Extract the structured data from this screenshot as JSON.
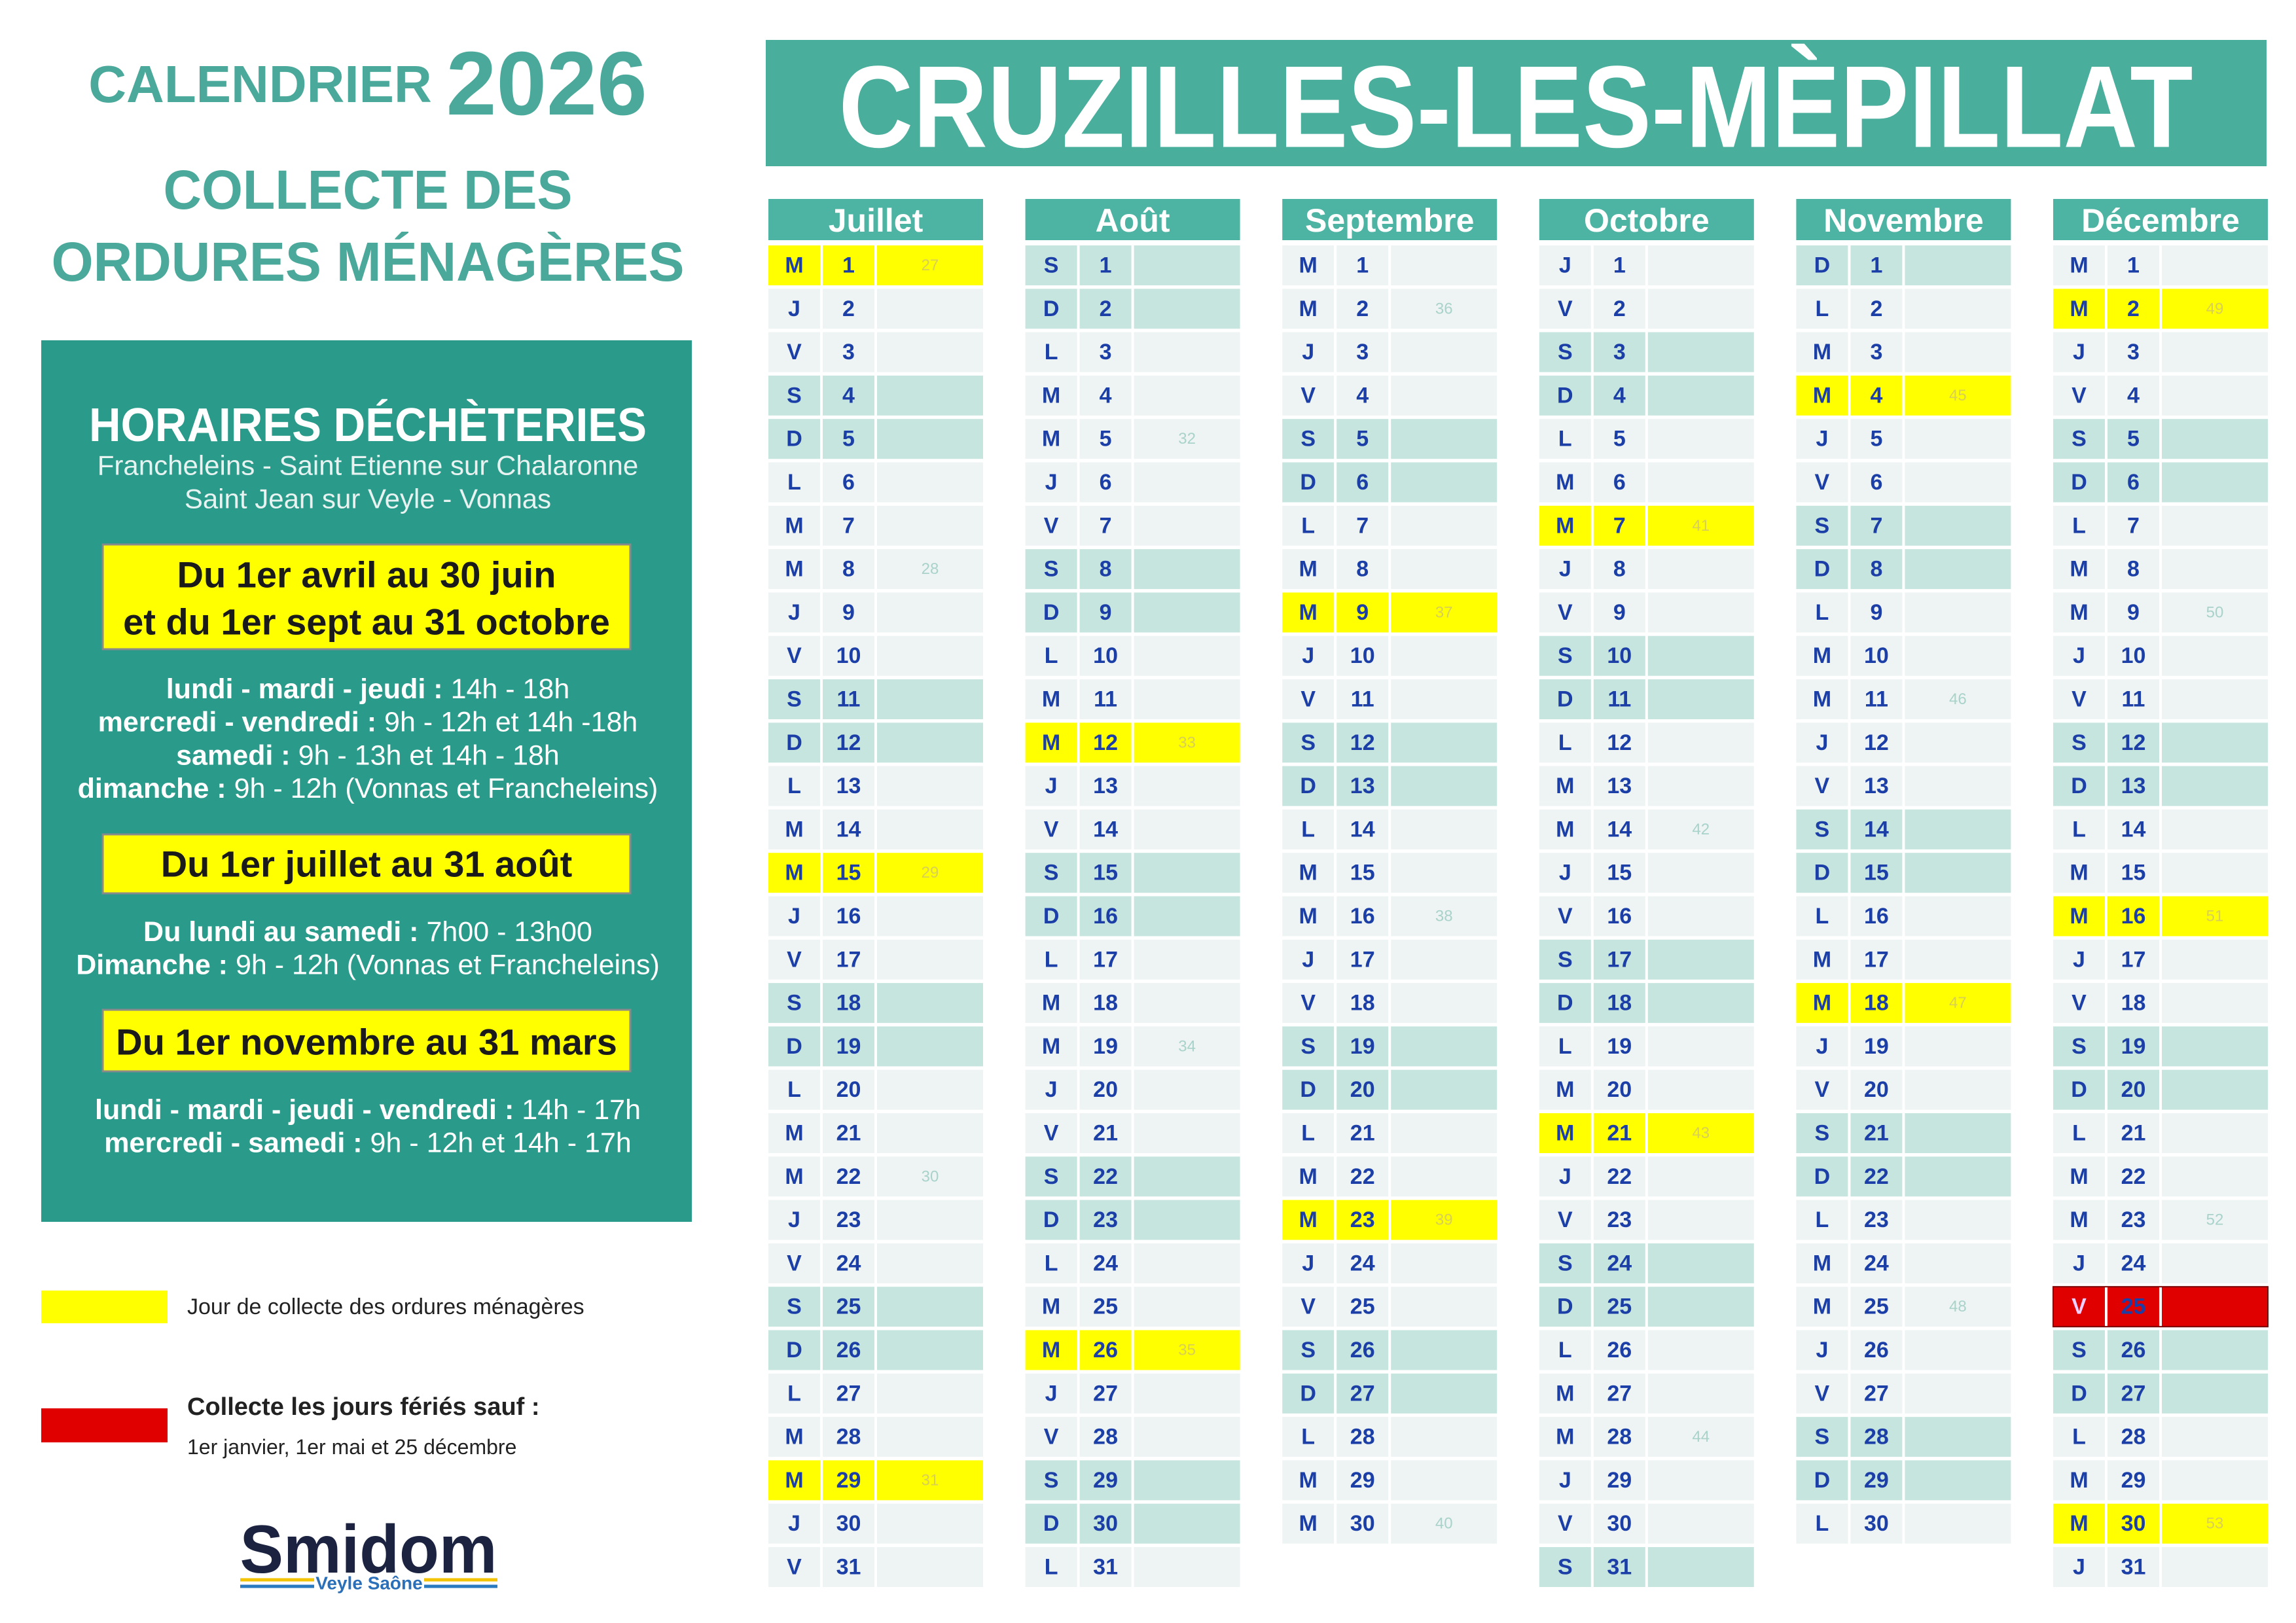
{
  "header": {
    "title_prefix": "CALENDRIER",
    "title_year": "2026",
    "subtitle": [
      "COLLECTE DES",
      "ORDURES MÉNAGÈRES"
    ],
    "commune": "CRUZILLES-LES-MÈPILLAT"
  },
  "dechetteries": {
    "title": "HORAIRES DÉCHÈTERIES",
    "locations": [
      "Francheleins - Saint Etienne sur Chalaronne",
      "Saint Jean sur Veyle - Vonnas"
    ],
    "periods": [
      {
        "label": [
          "Du 1er avril au 30 juin",
          "et du 1er sept au 31 octobre"
        ],
        "hours": [
          [
            "lundi - mardi - jeudi :",
            "14h - 18h"
          ],
          [
            "mercredi - vendredi :",
            "9h - 12h et 14h -18h"
          ],
          [
            "samedi :",
            "9h - 13h et 14h - 18h"
          ],
          [
            "dimanche :",
            "9h - 12h (Vonnas et Francheleins)"
          ]
        ]
      },
      {
        "label": [
          "Du 1er juillet au 31 août"
        ],
        "hours": [
          [
            "Du lundi au samedi :",
            "7h00 - 13h00"
          ],
          [
            "Dimanche :",
            "9h - 12h (Vonnas et Francheleins)"
          ]
        ]
      },
      {
        "label": [
          "Du 1er novembre au 31 mars"
        ],
        "hours": [
          [
            "lundi - mardi - jeudi - vendredi :",
            "14h - 17h"
          ],
          [
            "mercredi - samedi :",
            "9h - 12h et 14h - 17h"
          ]
        ]
      }
    ]
  },
  "legend": [
    {
      "label": "Jour de collecte des ordures ménagères",
      "color": "#ffff00"
    },
    {
      "label": "Collecte les jours fériés sauf :",
      "note": "1er janvier, 1er mai et 25 décembre",
      "color": "#e00000"
    }
  ],
  "logo": {
    "name": "Smidom",
    "tagline": "Veyle Saône"
  },
  "calendar": {
    "months": [
      {
        "name": "Juillet",
        "collection_days": [
          1,
          15,
          29
        ],
        "days": [
          [
            "M",
            1,
            27
          ],
          [
            "J",
            2,
            null
          ],
          [
            "V",
            3,
            null
          ],
          [
            "S",
            4,
            null
          ],
          [
            "D",
            5,
            null
          ],
          [
            "L",
            6,
            null
          ],
          [
            "M",
            7,
            null
          ],
          [
            "M",
            8,
            28
          ],
          [
            "J",
            9,
            null
          ],
          [
            "V",
            10,
            null
          ],
          [
            "S",
            11,
            null
          ],
          [
            "D",
            12,
            null
          ],
          [
            "L",
            13,
            null
          ],
          [
            "M",
            14,
            null
          ],
          [
            "M",
            15,
            29
          ],
          [
            "J",
            16,
            null
          ],
          [
            "V",
            17,
            null
          ],
          [
            "S",
            18,
            null
          ],
          [
            "D",
            19,
            null
          ],
          [
            "L",
            20,
            null
          ],
          [
            "M",
            21,
            null
          ],
          [
            "M",
            22,
            30
          ],
          [
            "J",
            23,
            null
          ],
          [
            "V",
            24,
            null
          ],
          [
            "S",
            25,
            null
          ],
          [
            "D",
            26,
            null
          ],
          [
            "L",
            27,
            null
          ],
          [
            "M",
            28,
            null
          ],
          [
            "M",
            29,
            31
          ],
          [
            "J",
            30,
            null
          ],
          [
            "V",
            31,
            null
          ]
        ]
      },
      {
        "name": "Août",
        "collection_days": [
          12,
          26
        ],
        "days": [
          [
            "S",
            1,
            null
          ],
          [
            "D",
            2,
            null
          ],
          [
            "L",
            3,
            null
          ],
          [
            "M",
            4,
            null
          ],
          [
            "M",
            5,
            32
          ],
          [
            "J",
            6,
            null
          ],
          [
            "V",
            7,
            null
          ],
          [
            "S",
            8,
            null
          ],
          [
            "D",
            9,
            null
          ],
          [
            "L",
            10,
            null
          ],
          [
            "M",
            11,
            null
          ],
          [
            "M",
            12,
            33
          ],
          [
            "J",
            13,
            null
          ],
          [
            "V",
            14,
            null
          ],
          [
            "S",
            15,
            null
          ],
          [
            "D",
            16,
            null
          ],
          [
            "L",
            17,
            null
          ],
          [
            "M",
            18,
            null
          ],
          [
            "M",
            19,
            34
          ],
          [
            "J",
            20,
            null
          ],
          [
            "V",
            21,
            null
          ],
          [
            "S",
            22,
            null
          ],
          [
            "D",
            23,
            null
          ],
          [
            "L",
            24,
            null
          ],
          [
            "M",
            25,
            null
          ],
          [
            "M",
            26,
            35
          ],
          [
            "J",
            27,
            null
          ],
          [
            "V",
            28,
            null
          ],
          [
            "S",
            29,
            null
          ],
          [
            "D",
            30,
            null
          ],
          [
            "L",
            31,
            null
          ]
        ]
      },
      {
        "name": "Septembre",
        "collection_days": [
          9,
          23
        ],
        "days": [
          [
            "M",
            1,
            null
          ],
          [
            "M",
            2,
            36
          ],
          [
            "J",
            3,
            null
          ],
          [
            "V",
            4,
            null
          ],
          [
            "S",
            5,
            null
          ],
          [
            "D",
            6,
            null
          ],
          [
            "L",
            7,
            null
          ],
          [
            "M",
            8,
            null
          ],
          [
            "M",
            9,
            37
          ],
          [
            "J",
            10,
            null
          ],
          [
            "V",
            11,
            null
          ],
          [
            "S",
            12,
            null
          ],
          [
            "D",
            13,
            null
          ],
          [
            "L",
            14,
            null
          ],
          [
            "M",
            15,
            null
          ],
          [
            "M",
            16,
            38
          ],
          [
            "J",
            17,
            null
          ],
          [
            "V",
            18,
            null
          ],
          [
            "S",
            19,
            null
          ],
          [
            "D",
            20,
            null
          ],
          [
            "L",
            21,
            null
          ],
          [
            "M",
            22,
            null
          ],
          [
            "M",
            23,
            39
          ],
          [
            "J",
            24,
            null
          ],
          [
            "V",
            25,
            null
          ],
          [
            "S",
            26,
            null
          ],
          [
            "D",
            27,
            null
          ],
          [
            "L",
            28,
            null
          ],
          [
            "M",
            29,
            null
          ],
          [
            "M",
            30,
            40
          ]
        ]
      },
      {
        "name": "Octobre",
        "collection_days": [
          7,
          21
        ],
        "days": [
          [
            "J",
            1,
            null
          ],
          [
            "V",
            2,
            null
          ],
          [
            "S",
            3,
            null
          ],
          [
            "D",
            4,
            null
          ],
          [
            "L",
            5,
            null
          ],
          [
            "M",
            6,
            null
          ],
          [
            "M",
            7,
            41
          ],
          [
            "J",
            8,
            null
          ],
          [
            "V",
            9,
            null
          ],
          [
            "S",
            10,
            null
          ],
          [
            "D",
            11,
            null
          ],
          [
            "L",
            12,
            null
          ],
          [
            "M",
            13,
            null
          ],
          [
            "M",
            14,
            42
          ],
          [
            "J",
            15,
            null
          ],
          [
            "V",
            16,
            null
          ],
          [
            "S",
            17,
            null
          ],
          [
            "D",
            18,
            null
          ],
          [
            "L",
            19,
            null
          ],
          [
            "M",
            20,
            null
          ],
          [
            "M",
            21,
            43
          ],
          [
            "J",
            22,
            null
          ],
          [
            "V",
            23,
            null
          ],
          [
            "S",
            24,
            null
          ],
          [
            "D",
            25,
            null
          ],
          [
            "L",
            26,
            null
          ],
          [
            "M",
            27,
            null
          ],
          [
            "M",
            28,
            44
          ],
          [
            "J",
            29,
            null
          ],
          [
            "V",
            30,
            null
          ],
          [
            "S",
            31,
            null
          ]
        ]
      },
      {
        "name": "Novembre",
        "collection_days": [
          4,
          18
        ],
        "days": [
          [
            "D",
            1,
            null
          ],
          [
            "L",
            2,
            null
          ],
          [
            "M",
            3,
            null
          ],
          [
            "M",
            4,
            45
          ],
          [
            "J",
            5,
            null
          ],
          [
            "V",
            6,
            null
          ],
          [
            "S",
            7,
            null
          ],
          [
            "D",
            8,
            null
          ],
          [
            "L",
            9,
            null
          ],
          [
            "M",
            10,
            null
          ],
          [
            "M",
            11,
            46
          ],
          [
            "J",
            12,
            null
          ],
          [
            "V",
            13,
            null
          ],
          [
            "S",
            14,
            null
          ],
          [
            "D",
            15,
            null
          ],
          [
            "L",
            16,
            null
          ],
          [
            "M",
            17,
            null
          ],
          [
            "M",
            18,
            47
          ],
          [
            "J",
            19,
            null
          ],
          [
            "V",
            20,
            null
          ],
          [
            "S",
            21,
            null
          ],
          [
            "D",
            22,
            null
          ],
          [
            "L",
            23,
            null
          ],
          [
            "M",
            24,
            null
          ],
          [
            "M",
            25,
            48
          ],
          [
            "J",
            26,
            null
          ],
          [
            "V",
            27,
            null
          ],
          [
            "S",
            28,
            null
          ],
          [
            "D",
            29,
            null
          ],
          [
            "L",
            30,
            null
          ]
        ]
      },
      {
        "name": "Décembre",
        "collection_days": [
          2,
          16,
          30
        ],
        "holidays": [
          25
        ],
        "days": [
          [
            "M",
            1,
            null
          ],
          [
            "M",
            2,
            49
          ],
          [
            "J",
            3,
            null
          ],
          [
            "V",
            4,
            null
          ],
          [
            "S",
            5,
            null
          ],
          [
            "D",
            6,
            null
          ],
          [
            "L",
            7,
            null
          ],
          [
            "M",
            8,
            null
          ],
          [
            "M",
            9,
            50
          ],
          [
            "J",
            10,
            null
          ],
          [
            "V",
            11,
            null
          ],
          [
            "S",
            12,
            null
          ],
          [
            "D",
            13,
            null
          ],
          [
            "L",
            14,
            null
          ],
          [
            "M",
            15,
            null
          ],
          [
            "M",
            16,
            51
          ],
          [
            "J",
            17,
            null
          ],
          [
            "V",
            18,
            null
          ],
          [
            "S",
            19,
            null
          ],
          [
            "D",
            20,
            null
          ],
          [
            "L",
            21,
            null
          ],
          [
            "M",
            22,
            null
          ],
          [
            "M",
            23,
            52
          ],
          [
            "J",
            24,
            null
          ],
          [
            "V",
            25,
            null
          ],
          [
            "S",
            26,
            null
          ],
          [
            "D",
            27,
            null
          ],
          [
            "L",
            28,
            null
          ],
          [
            "M",
            29,
            null
          ],
          [
            "M",
            30,
            53
          ],
          [
            "J",
            31,
            null
          ]
        ]
      }
    ]
  }
}
